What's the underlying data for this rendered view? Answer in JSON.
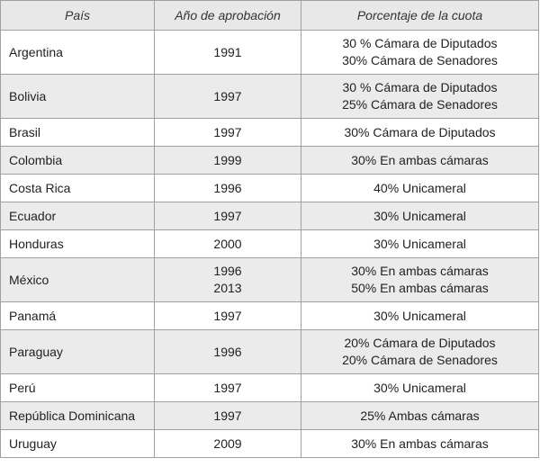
{
  "table": {
    "headers": [
      "País",
      "Año de aprobación",
      "Porcentaje de la cuota"
    ],
    "rows": [
      {
        "country": "Argentina",
        "years": [
          "1991"
        ],
        "quotas": [
          "30 % Cámara de Diputados",
          "30% Cámara de Senadores"
        ]
      },
      {
        "country": "Bolivia",
        "years": [
          "1997"
        ],
        "quotas": [
          "30 % Cámara de Diputados",
          "25% Cámara de Senadores"
        ]
      },
      {
        "country": "Brasil",
        "years": [
          "1997"
        ],
        "quotas": [
          "30% Cámara de Diputados"
        ]
      },
      {
        "country": "Colombia",
        "years": [
          "1999"
        ],
        "quotas": [
          "30% En ambas cámaras"
        ]
      },
      {
        "country": "Costa Rica",
        "years": [
          "1996"
        ],
        "quotas": [
          "40% Unicameral"
        ]
      },
      {
        "country": "Ecuador",
        "years": [
          "1997"
        ],
        "quotas": [
          "30% Unicameral"
        ]
      },
      {
        "country": "Honduras",
        "years": [
          "2000"
        ],
        "quotas": [
          "30% Unicameral"
        ]
      },
      {
        "country": "México",
        "years": [
          "1996",
          "2013"
        ],
        "quotas": [
          "30% En ambas cámaras",
          "50% En ambas cámaras"
        ]
      },
      {
        "country": "Panamá",
        "years": [
          "1997"
        ],
        "quotas": [
          "30% Unicameral"
        ]
      },
      {
        "country": "Paraguay",
        "years": [
          "1996"
        ],
        "quotas": [
          "20% Cámara de Diputados",
          "20% Cámara de Senadores"
        ]
      },
      {
        "country": "Perú",
        "years": [
          "1997"
        ],
        "quotas": [
          "30% Unicameral"
        ]
      },
      {
        "country": "República Dominicana",
        "years": [
          "1997"
        ],
        "quotas": [
          "25% Ambas cámaras"
        ]
      },
      {
        "country": "Uruguay",
        "years": [
          "2009"
        ],
        "quotas": [
          "30% En ambas cámaras"
        ]
      }
    ]
  }
}
